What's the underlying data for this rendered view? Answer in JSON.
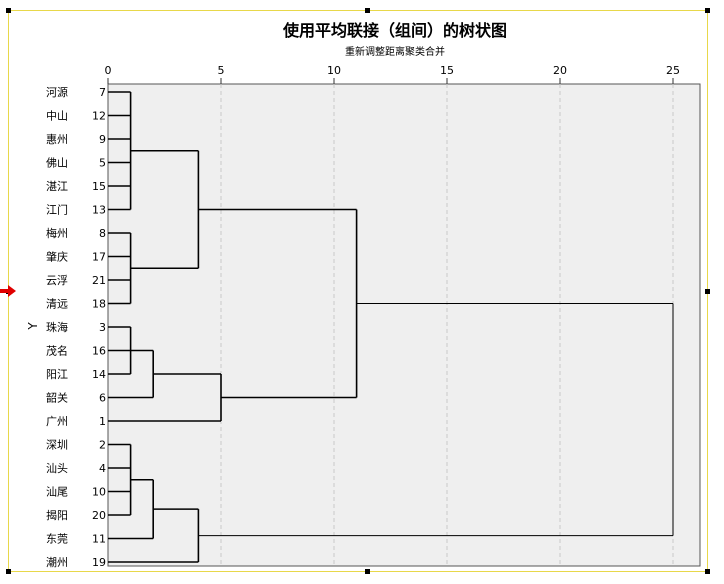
{
  "chart_data": {
    "type": "dendrogram",
    "title": "使用平均联接（组间）的树状图",
    "subtitle": "重新调整距离聚类合并",
    "ylabel": "Y",
    "xlim": [
      0,
      25
    ],
    "x_ticks": [
      0,
      5,
      10,
      15,
      20,
      25
    ],
    "grid": true,
    "leaves": [
      {
        "label": "河源",
        "id": "7"
      },
      {
        "label": "中山",
        "id": "12"
      },
      {
        "label": "惠州",
        "id": "9"
      },
      {
        "label": "佛山",
        "id": "5"
      },
      {
        "label": "湛江",
        "id": "15"
      },
      {
        "label": "江门",
        "id": "13"
      },
      {
        "label": "梅州",
        "id": "8"
      },
      {
        "label": "肇庆",
        "id": "17"
      },
      {
        "label": "云浮",
        "id": "21"
      },
      {
        "label": "清远",
        "id": "18"
      },
      {
        "label": "珠海",
        "id": "3"
      },
      {
        "label": "茂名",
        "id": "16"
      },
      {
        "label": "阳江",
        "id": "14"
      },
      {
        "label": "韶关",
        "id": "6"
      },
      {
        "label": "广州",
        "id": "1"
      },
      {
        "label": "深圳",
        "id": "2"
      },
      {
        "label": "汕头",
        "id": "4"
      },
      {
        "label": "汕尾",
        "id": "10"
      },
      {
        "label": "揭阳",
        "id": "20"
      },
      {
        "label": "东莞",
        "id": "11"
      },
      {
        "label": "潮州",
        "id": "19"
      }
    ],
    "merges": [
      {
        "children": [
          "L0",
          "L1",
          "L2",
          "L3",
          "L4",
          "L5"
        ],
        "height": 1.0,
        "id": "A"
      },
      {
        "children": [
          "L6",
          "L7",
          "L8",
          "L9"
        ],
        "height": 1.0,
        "id": "B"
      },
      {
        "children": [
          "A",
          "B"
        ],
        "height": 4.0,
        "id": "C"
      },
      {
        "children": [
          "L10",
          "L11",
          "L12"
        ],
        "height": 1.0,
        "id": "D"
      },
      {
        "children": [
          "D",
          "L13"
        ],
        "height": 2.0,
        "id": "E"
      },
      {
        "children": [
          "E",
          "L14"
        ],
        "height": 5.0,
        "id": "F"
      },
      {
        "children": [
          "C",
          "F"
        ],
        "height": 11.0,
        "id": "G"
      },
      {
        "children": [
          "L15",
          "L16",
          "L17",
          "L18"
        ],
        "height": 1.0,
        "id": "H"
      },
      {
        "children": [
          "H",
          "L19"
        ],
        "height": 2.0,
        "id": "I"
      },
      {
        "children": [
          "I",
          "L20"
        ],
        "height": 4.0,
        "id": "J"
      },
      {
        "children": [
          "G",
          "J"
        ],
        "height": 25.0,
        "id": "K"
      }
    ]
  }
}
